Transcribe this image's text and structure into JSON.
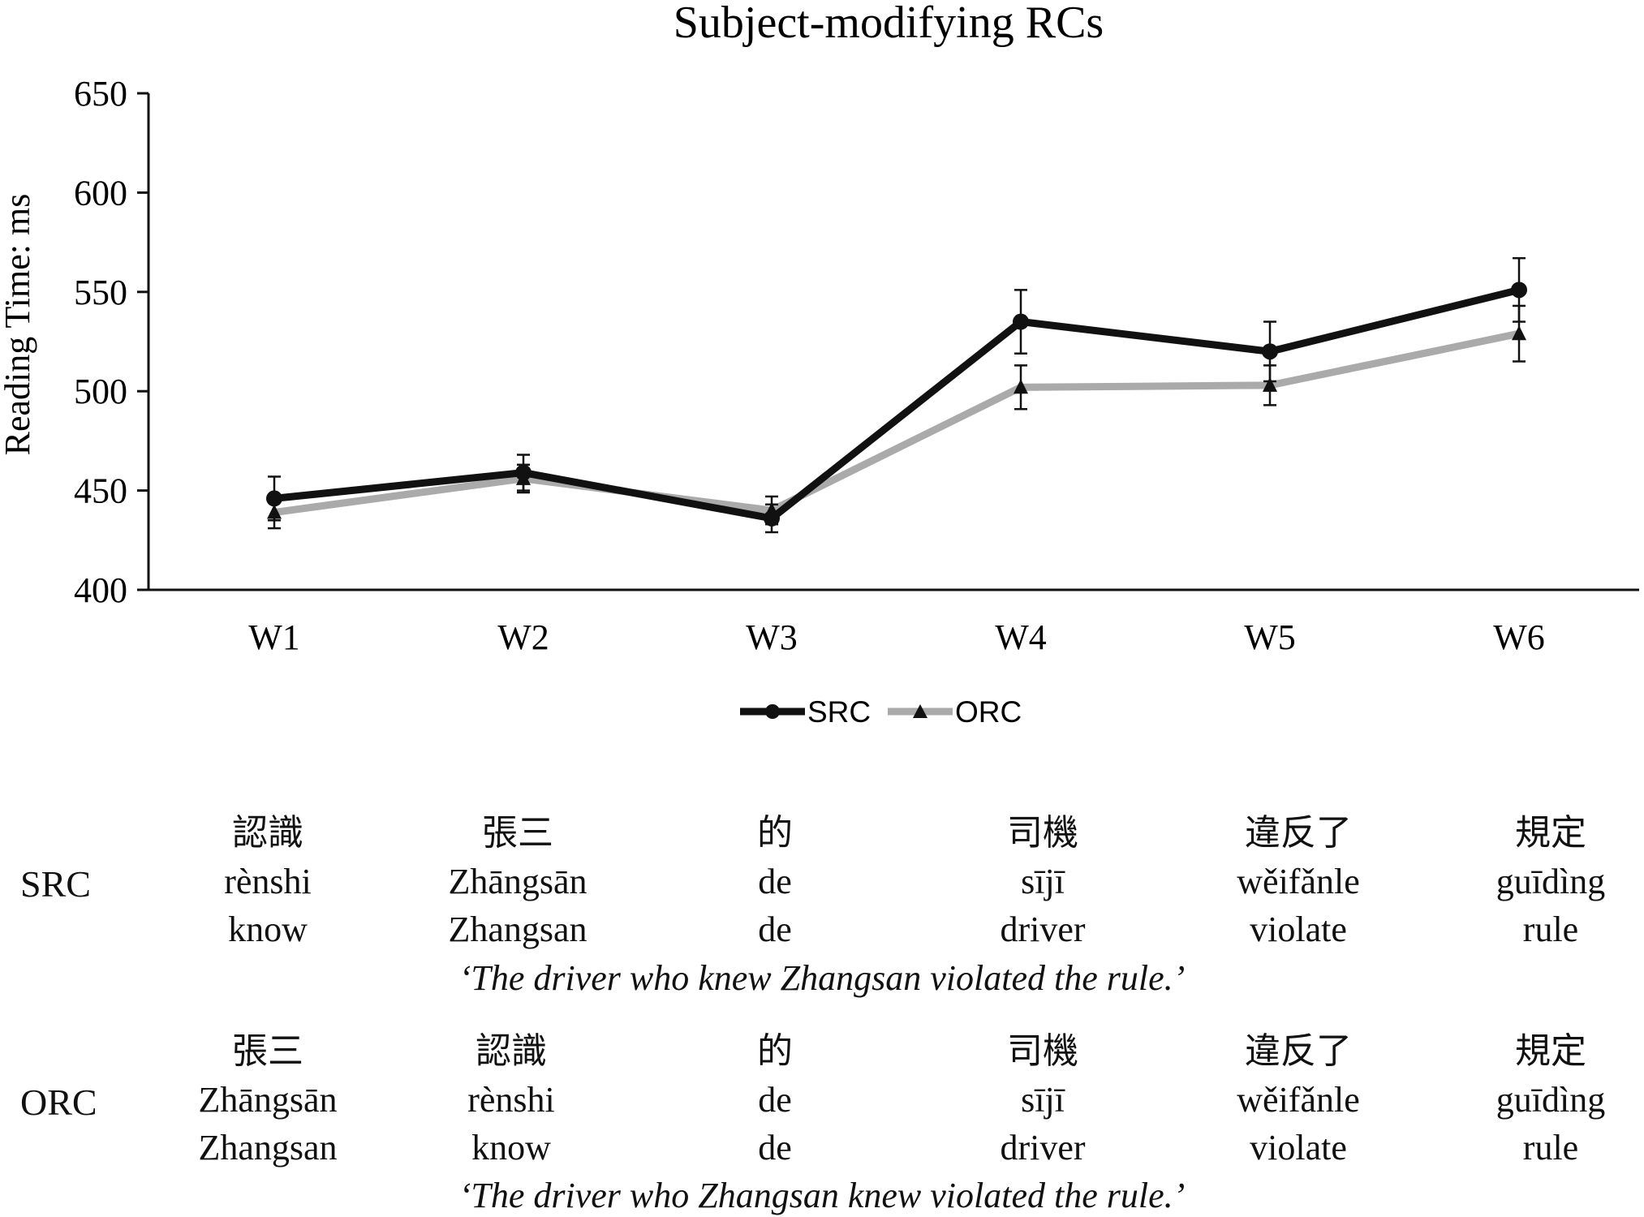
{
  "chart_data": {
    "type": "line",
    "title": "Subject-modifying RCs",
    "ylabel": "Reading Time: ms",
    "xlabel": "",
    "categories": [
      "W1",
      "W2",
      "W3",
      "W4",
      "W5",
      "W6"
    ],
    "ylim": [
      400,
      650
    ],
    "yticks": [
      400,
      450,
      500,
      550,
      600,
      650
    ],
    "grid": false,
    "legend_position": "bottom",
    "series": [
      {
        "name": "SRC",
        "marker": "circle",
        "color": "#111111",
        "values": [
          446,
          459,
          436,
          535,
          520,
          551
        ],
        "error": [
          11,
          9,
          7,
          16,
          15,
          16
        ]
      },
      {
        "name": "ORC",
        "marker": "triangle",
        "color": "#aaaaaa",
        "values": [
          439,
          456,
          440,
          502,
          503,
          529
        ],
        "error": [
          8,
          7,
          7,
          11,
          10,
          14
        ]
      }
    ]
  },
  "gloss": {
    "sentences": [
      {
        "label": "SRC",
        "hanzi": [
          "認識",
          "張三",
          "的",
          "司機",
          "違反了",
          "規定"
        ],
        "pinyin": [
          "rènshi",
          "Zhāngsān",
          "de",
          "sījī",
          "wěifǎnle",
          "guīdìng"
        ],
        "english": [
          "know",
          "Zhangsan",
          "de",
          "driver",
          "violate",
          "rule"
        ],
        "translation": "‘The driver who knew Zhangsan violated the rule.’"
      },
      {
        "label": "ORC",
        "hanzi": [
          "張三",
          "認識",
          "的",
          "司機",
          "違反了",
          "規定"
        ],
        "pinyin": [
          "Zhāngsān",
          "rènshi",
          "de",
          "sījī",
          "wěifǎnle",
          "guīdìng"
        ],
        "english": [
          "Zhangsan",
          "know",
          "de",
          "driver",
          "violate",
          "rule"
        ],
        "translation": "‘The driver who Zhangsan knew violated the rule.’"
      }
    ]
  }
}
